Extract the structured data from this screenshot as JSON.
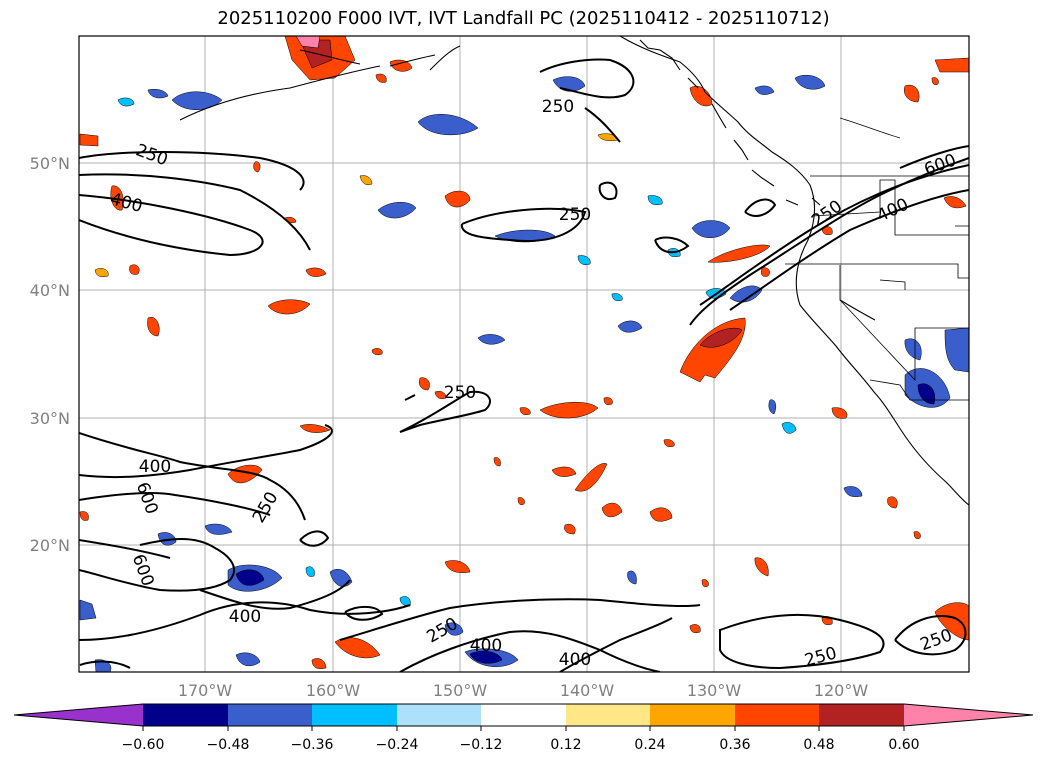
{
  "title": "2025110200 F000 IVT, IVT Landfall PC (2025110412 - 2025110712)",
  "map": {
    "lat_labels": [
      "50°N",
      "40°N",
      "30°N",
      "20°N"
    ],
    "lon_labels": [
      "170°W",
      "160°W",
      "150°W",
      "140°W",
      "130°W",
      "120°W"
    ],
    "contour_labels": [
      "250",
      "250",
      "400",
      "250",
      "250",
      "400",
      "600",
      "250",
      "600",
      "400",
      "250",
      "400",
      "400",
      "250",
      "250",
      "600",
      "400",
      "250"
    ]
  },
  "colorbar": {
    "tick_labels": [
      "−0.60",
      "−0.48",
      "−0.36",
      "−0.24",
      "−0.12",
      "0.12",
      "0.24",
      "0.36",
      "0.48",
      "0.60"
    ],
    "colors": [
      "#9932CC",
      "#00008B",
      "#3A5FCD",
      "#00BFFF",
      "#ADE1FA",
      "#FFFFFF",
      "#FFE788",
      "#FFA500",
      "#FF4500",
      "#B22222",
      "#FF82AB"
    ]
  }
}
